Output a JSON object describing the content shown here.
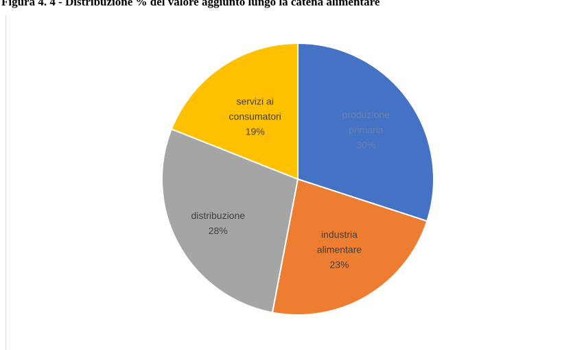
{
  "caption": "Figura 4. 4 - Distribuzione % del valore aggiunto lungo la catena alimentare",
  "chart_data": {
    "type": "pie",
    "title": "",
    "slices": [
      {
        "label_lines": [
          "produzione",
          "primaria"
        ],
        "value": 30,
        "value_label": "30%",
        "color": "#4472C4",
        "text_color": "#6b7fa8"
      },
      {
        "label_lines": [
          "industria",
          "alimentare"
        ],
        "value": 23,
        "value_label": "23%",
        "color": "#ED7D31",
        "text_color": "#404040"
      },
      {
        "label_lines": [
          "distribuzione"
        ],
        "value": 28,
        "value_label": "28%",
        "color": "#A5A5A5",
        "text_color": "#404040"
      },
      {
        "label_lines": [
          "servizi ai",
          "consumatori"
        ],
        "value": 19,
        "value_label": "19%",
        "color": "#FFC000",
        "text_color": "#404040"
      }
    ],
    "start_angle_deg": 0,
    "direction": "clockwise",
    "legend": "none",
    "data_labels": "inside"
  }
}
